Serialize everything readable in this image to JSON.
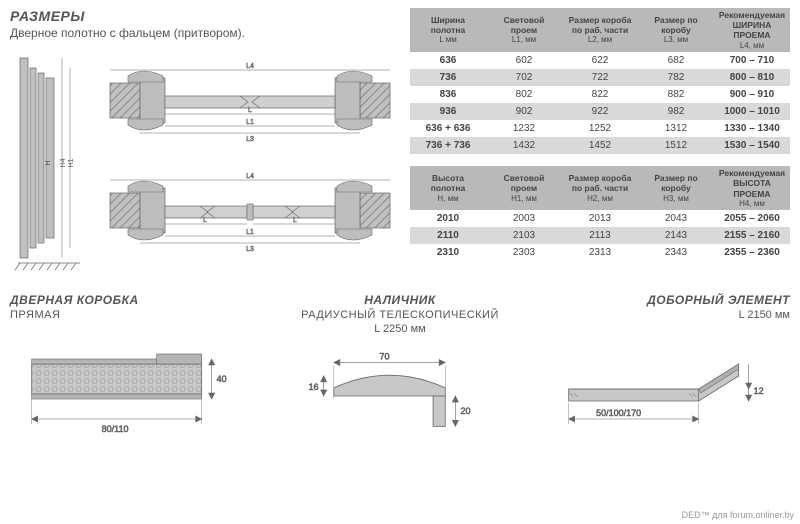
{
  "header": {
    "title": "РАЗМЕРЫ",
    "subtitle": "Дверное полотно с фальцем (притвором)."
  },
  "colors": {
    "header_bg": "#b9b9b9",
    "row_alt_bg": "#d9d9d9",
    "diagram_fill": "#c0c0c0",
    "diagram_hatch": "#9a9a9a",
    "diagram_dark": "#7a7a7a",
    "text": "#444444"
  },
  "table1": {
    "headers": [
      {
        "line1": "Ширина",
        "line2": "полотна",
        "sub": "L мм"
      },
      {
        "line1": "Световой",
        "line2": "проем",
        "sub": "L1, мм"
      },
      {
        "line1": "Размер короба",
        "line2": "по раб. части",
        "sub": "L2, мм"
      },
      {
        "line1": "Размер по",
        "line2": "коробу",
        "sub": "L3, мм"
      },
      {
        "line1": "Рекомендуемая",
        "line2": "ШИРИНА ПРОЕМА",
        "sub": "L4, мм"
      }
    ],
    "rows": [
      {
        "cells": [
          "636",
          "602",
          "622",
          "682",
          "700 – 710"
        ],
        "alt": false
      },
      {
        "cells": [
          "736",
          "702",
          "722",
          "782",
          "800 – 810"
        ],
        "alt": true
      },
      {
        "cells": [
          "836",
          "802",
          "822",
          "882",
          "900 – 910"
        ],
        "alt": false
      },
      {
        "cells": [
          "936",
          "902",
          "922",
          "982",
          "1000 – 1010"
        ],
        "alt": true
      },
      {
        "cells": [
          "636 + 636",
          "1232",
          "1252",
          "1312",
          "1330 – 1340"
        ],
        "alt": false
      },
      {
        "cells": [
          "736 + 736",
          "1432",
          "1452",
          "1512",
          "1530 – 1540"
        ],
        "alt": true
      }
    ]
  },
  "table2": {
    "headers": [
      {
        "line1": "Высота",
        "line2": "полотна",
        "sub": "H, мм"
      },
      {
        "line1": "Световой",
        "line2": "проем",
        "sub": "H1, мм"
      },
      {
        "line1": "Размер короба",
        "line2": "по раб. части",
        "sub": "H2, мм"
      },
      {
        "line1": "Размер по",
        "line2": "коробу",
        "sub": "H3, мм"
      },
      {
        "line1": "Рекомендуемая",
        "line2": "ВЫСОТА ПРОЕМА",
        "sub": "H4, мм"
      }
    ],
    "rows": [
      {
        "cells": [
          "2010",
          "2003",
          "2013",
          "2043",
          "2055 – 2060"
        ],
        "alt": false
      },
      {
        "cells": [
          "2110",
          "2103",
          "2113",
          "2143",
          "2155 – 2160"
        ],
        "alt": true
      },
      {
        "cells": [
          "2310",
          "2303",
          "2313",
          "2343",
          "2355 – 2360"
        ],
        "alt": false
      }
    ]
  },
  "bottom": {
    "frame": {
      "title": "ДВЕРНАЯ КОРОБКА",
      "subtitle": "ПРЯМАЯ",
      "w": "80/110",
      "h": "40"
    },
    "casing": {
      "title": "НАЛИЧНИК",
      "subtitle": "РАДИУСНЫЙ ТЕЛЕСКОПИЧЕСКИЙ",
      "len": "L 2250 мм",
      "w": "70",
      "h1": "16",
      "h2": "20"
    },
    "extender": {
      "title": "ДОБОРНЫЙ ЭЛЕМЕНТ",
      "len": "L 2150 мм",
      "w": "50/100/170",
      "h": "12"
    }
  },
  "diagram_labels": {
    "L": "L",
    "L1": "L1",
    "L2": "L2",
    "L3": "L3",
    "L4": "L4",
    "H": "H",
    "H1": "H1",
    "H4": "H4"
  },
  "watermark": "DED™ для forum.onliner.by"
}
